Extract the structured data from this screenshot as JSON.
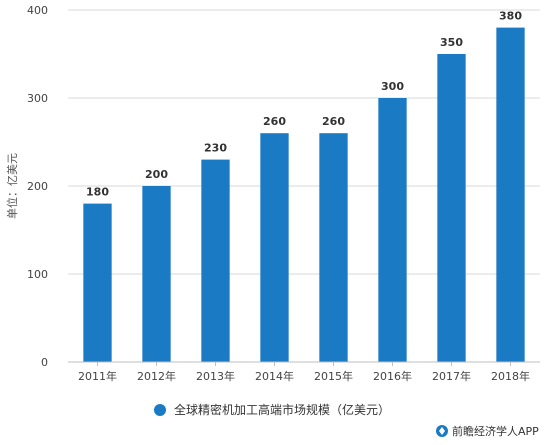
{
  "chart_data": {
    "type": "bar",
    "categories": [
      "2011年",
      "2012年",
      "2013年",
      "2014年",
      "2015年",
      "2016年",
      "2017年",
      "2018年"
    ],
    "series": [
      {
        "name": "全球精密机加工高端市场规模（亿美元）",
        "values": [
          180,
          200,
          230,
          260,
          260,
          300,
          350,
          380
        ],
        "color": "#1a7ac4"
      }
    ],
    "ylabel": "单位：亿美元",
    "ylim": [
      0,
      400
    ],
    "yticks": [
      0,
      100,
      200,
      300,
      400
    ],
    "grid": true,
    "legend": "bottom-center"
  },
  "credit": {
    "text": "前瞻经济学人APP",
    "icon": "qianzhan-logo-icon"
  },
  "colors": {
    "bar": "#1a7ac4",
    "grid": "#d9d9d9",
    "axis": "#bfbfbf"
  }
}
